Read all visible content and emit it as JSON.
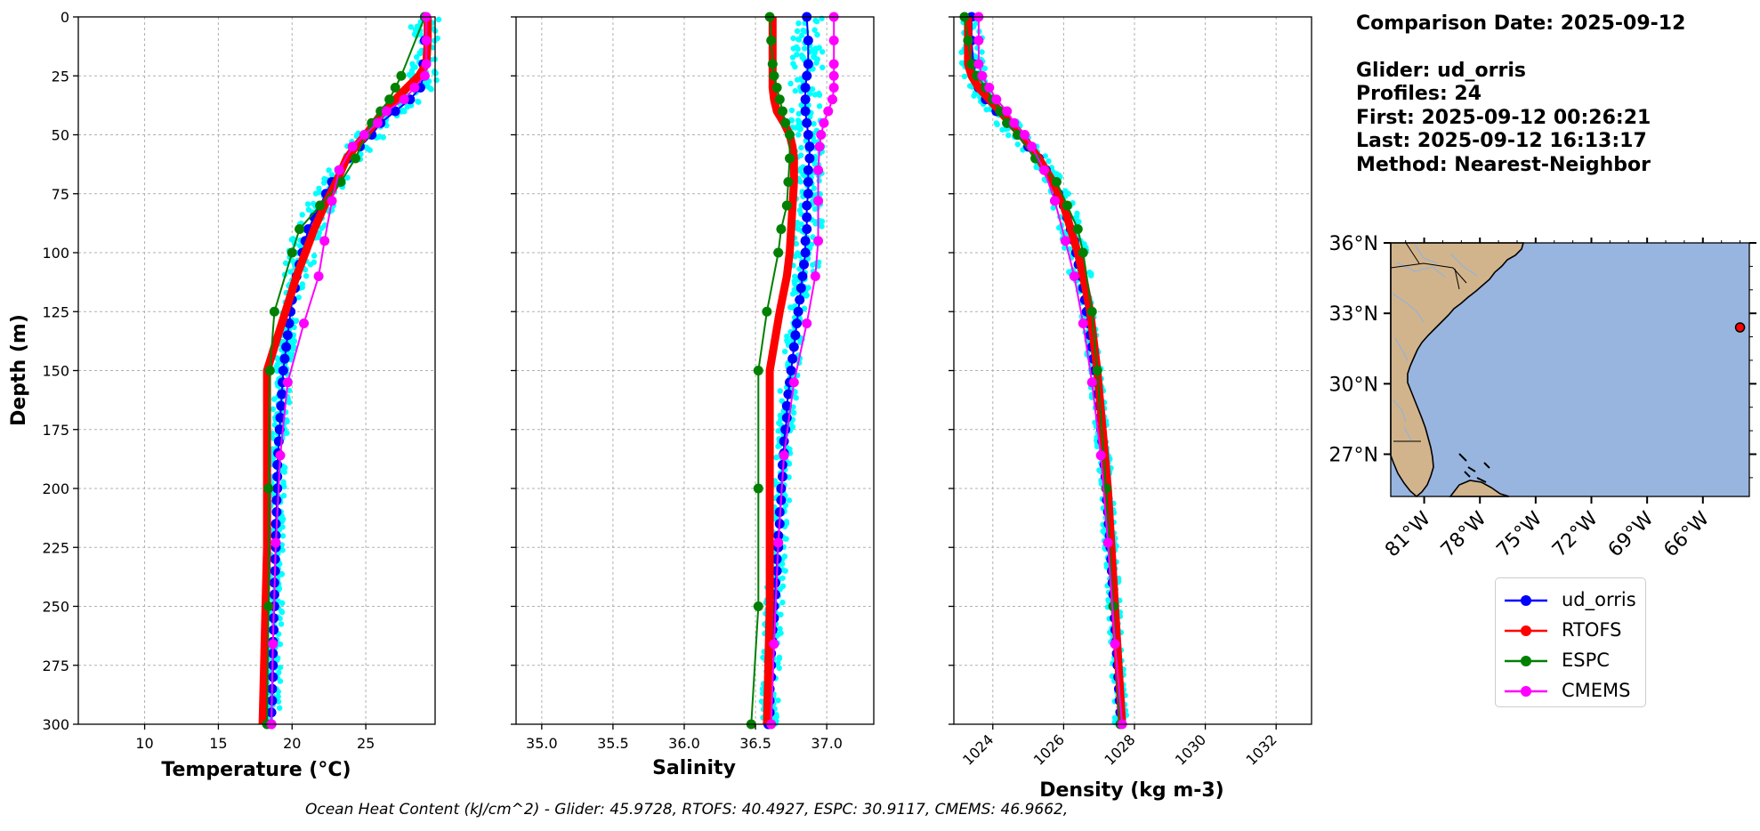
{
  "info": {
    "comparison_date": "Comparison Date: 2025-09-12",
    "glider": "Glider: ud_orris",
    "profiles": "Profiles: 24",
    "first": "First: 2025-09-12 00:26:21",
    "last": "Last: 2025-09-12 16:13:17",
    "method": "Method: Nearest-Neighbor"
  },
  "footer": "Ocean Heat Content (kJ/cm^2) - Glider: 45.9728,  RTOFS: 40.4927,  ESPC: 30.9117,  CMEMS: 46.9662,",
  "colors": {
    "glider": "#0000ff",
    "glider_raw": "#00ffff",
    "rtofs": "#ff0000",
    "espc": "#008000",
    "cmems": "#ff00ff",
    "ocean": "#98b5e0",
    "land": "#d2b48c"
  },
  "legend": [
    {
      "label": "ud_orris",
      "color": "#0000ff"
    },
    {
      "label": "RTOFS",
      "color": "#ff0000"
    },
    {
      "label": "ESPC",
      "color": "#008000"
    },
    {
      "label": "CMEMS",
      "color": "#ff00ff"
    }
  ],
  "chart_data": [
    {
      "type": "line",
      "xlabel": "Temperature (°C)",
      "ylabel": "Depth (m)",
      "xlim": [
        5.5,
        29.7
      ],
      "ylim": [
        300,
        0
      ],
      "x_ticks": [
        10,
        15,
        20,
        25
      ],
      "y_ticks": [
        0,
        25,
        50,
        75,
        100,
        125,
        150,
        175,
        200,
        225,
        250,
        275,
        300
      ],
      "grid": true,
      "series": [
        {
          "name": "ud_orris",
          "depth": [
            0,
            10,
            20,
            25,
            30,
            35,
            40,
            45,
            50,
            55,
            60,
            65,
            70,
            75,
            80,
            85,
            90,
            95,
            100,
            105,
            110,
            115,
            120,
            125,
            130,
            135,
            140,
            145,
            150,
            155,
            160,
            165,
            170,
            175,
            180,
            185,
            190,
            195,
            200,
            205,
            210,
            215,
            220,
            225,
            230,
            235,
            240,
            245,
            250,
            255,
            260,
            265,
            270,
            275,
            280,
            285,
            290,
            295,
            300
          ],
          "values": [
            29.0,
            29.0,
            28.9,
            28.9,
            28.7,
            28.0,
            27.0,
            26.0,
            25.4,
            24.6,
            23.8,
            23.2,
            22.7,
            22.3,
            21.9,
            21.5,
            21.1,
            20.9,
            20.7,
            20.5,
            20.3,
            20.2,
            20.0,
            19.9,
            19.8,
            19.7,
            19.6,
            19.5,
            19.4,
            19.35,
            19.3,
            19.25,
            19.2,
            19.15,
            19.1,
            19.05,
            19.0,
            19.0,
            19.0,
            18.95,
            18.95,
            18.9,
            18.9,
            18.9,
            18.85,
            18.85,
            18.8,
            18.8,
            18.8,
            18.75,
            18.75,
            18.7,
            18.7,
            18.7,
            18.7,
            18.65,
            18.65,
            18.6,
            18.6
          ]
        },
        {
          "name": "RTOFS",
          "depth": [
            0,
            10,
            20,
            25,
            30,
            35,
            40,
            45,
            50,
            55,
            60,
            70,
            80,
            90,
            100,
            110,
            120,
            130,
            140,
            150,
            175,
            200,
            225,
            250,
            275,
            300
          ],
          "values": [
            29.2,
            29.2,
            29.1,
            28.6,
            27.8,
            27.0,
            26.2,
            25.6,
            25.0,
            24.3,
            23.7,
            23.0,
            22.2,
            21.5,
            20.9,
            20.3,
            19.8,
            19.3,
            18.8,
            18.3,
            18.3,
            18.3,
            18.3,
            18.2,
            18.1,
            18.0
          ]
        },
        {
          "name": "ESPC",
          "depth": [
            0,
            25,
            30,
            35,
            40,
            45,
            50,
            60,
            70,
            80,
            90,
            100,
            125,
            150,
            200,
            250,
            300
          ],
          "values": [
            29.0,
            27.4,
            27.0,
            26.6,
            26.0,
            25.4,
            25.0,
            24.3,
            23.3,
            21.9,
            20.5,
            20.0,
            18.8,
            18.5,
            18.4,
            18.4,
            18.3
          ]
        },
        {
          "name": "CMEMS",
          "depth": [
            0,
            10,
            20,
            25,
            30,
            35,
            40,
            45,
            50,
            55,
            65,
            78,
            95,
            110,
            130,
            155,
            186,
            223,
            266,
            300
          ],
          "values": [
            29.1,
            29.1,
            29.1,
            29.0,
            28.3,
            27.6,
            26.4,
            25.8,
            24.9,
            24.1,
            23.2,
            22.7,
            22.2,
            21.8,
            20.8,
            19.7,
            19.2,
            18.9,
            18.7,
            18.6
          ]
        }
      ]
    },
    {
      "type": "line",
      "xlabel": "Salinity",
      "xlim": [
        34.82,
        37.33
      ],
      "ylim": [
        300,
        0
      ],
      "x_ticks": [
        35.0,
        35.5,
        36.0,
        36.5,
        37.0
      ],
      "grid": true,
      "series": [
        {
          "name": "ud_orris",
          "depth": [
            0,
            10,
            20,
            25,
            30,
            35,
            40,
            45,
            50,
            55,
            60,
            65,
            70,
            75,
            80,
            85,
            90,
            95,
            100,
            105,
            110,
            115,
            120,
            125,
            130,
            135,
            140,
            145,
            150,
            155,
            160,
            165,
            170,
            175,
            180,
            185,
            190,
            195,
            200,
            205,
            210,
            215,
            220,
            225,
            230,
            235,
            240,
            245,
            250,
            255,
            260,
            265,
            270,
            275,
            280,
            285,
            290,
            295,
            300
          ],
          "values": [
            36.86,
            36.87,
            36.87,
            36.86,
            36.85,
            36.85,
            36.85,
            36.86,
            36.87,
            36.88,
            36.88,
            36.87,
            36.87,
            36.87,
            36.86,
            36.86,
            36.86,
            36.85,
            36.85,
            36.84,
            36.83,
            36.82,
            36.81,
            36.8,
            36.79,
            36.78,
            36.77,
            36.76,
            36.75,
            36.74,
            36.73,
            36.72,
            36.72,
            36.71,
            36.7,
            36.7,
            36.69,
            36.69,
            36.68,
            36.68,
            36.67,
            36.67,
            36.66,
            36.66,
            36.65,
            36.65,
            36.64,
            36.64,
            36.63,
            36.63,
            36.62,
            36.62,
            36.61,
            36.61,
            36.61,
            36.6,
            36.6,
            36.6,
            36.59
          ]
        },
        {
          "name": "RTOFS",
          "depth": [
            0,
            10,
            20,
            25,
            30,
            35,
            40,
            45,
            50,
            55,
            60,
            70,
            80,
            90,
            100,
            110,
            125,
            150,
            175,
            200,
            225,
            250,
            275,
            300
          ],
          "values": [
            36.62,
            36.62,
            36.62,
            36.62,
            36.62,
            36.63,
            36.65,
            36.7,
            36.74,
            36.76,
            36.77,
            36.77,
            36.76,
            36.75,
            36.74,
            36.72,
            36.67,
            36.6,
            36.6,
            36.6,
            36.6,
            36.6,
            36.59,
            36.58
          ]
        },
        {
          "name": "ESPC",
          "depth": [
            0,
            10,
            20,
            25,
            30,
            35,
            40,
            45,
            50,
            60,
            70,
            80,
            90,
            100,
            125,
            150,
            200,
            250,
            300
          ],
          "values": [
            36.6,
            36.61,
            36.62,
            36.63,
            36.65,
            36.67,
            36.69,
            36.71,
            36.74,
            36.74,
            36.73,
            36.72,
            36.68,
            36.66,
            36.58,
            36.52,
            36.52,
            36.52,
            36.47
          ]
        },
        {
          "name": "CMEMS",
          "depth": [
            0,
            10,
            20,
            25,
            30,
            35,
            40,
            45,
            50,
            55,
            65,
            78,
            95,
            110,
            130,
            155,
            186,
            223,
            266,
            300
          ],
          "values": [
            37.05,
            37.05,
            37.05,
            37.05,
            37.05,
            37.04,
            37.01,
            36.98,
            36.96,
            36.95,
            36.94,
            36.94,
            36.94,
            36.92,
            36.86,
            36.77,
            36.7,
            36.66,
            36.63,
            36.61
          ]
        }
      ]
    },
    {
      "type": "line",
      "xlabel": "Density (kg m-3)",
      "xlim": [
        1022.9,
        1033.0
      ],
      "ylim": [
        300,
        0
      ],
      "x_ticks": [
        1024,
        1026,
        1028,
        1030,
        1032
      ],
      "grid": true,
      "series": [
        {
          "name": "ud_orris",
          "depth": [
            0,
            10,
            20,
            25,
            30,
            35,
            40,
            45,
            50,
            55,
            60,
            65,
            70,
            75,
            80,
            85,
            90,
            95,
            100,
            105,
            110,
            115,
            120,
            125,
            130,
            135,
            140,
            145,
            150,
            155,
            160,
            165,
            170,
            175,
            180,
            185,
            190,
            195,
            200,
            205,
            210,
            215,
            220,
            225,
            230,
            235,
            240,
            245,
            250,
            255,
            260,
            265,
            270,
            275,
            280,
            285,
            290,
            295,
            300
          ],
          "values": [
            1023.4,
            1023.4,
            1023.45,
            1023.5,
            1023.6,
            1023.8,
            1024.1,
            1024.4,
            1024.7,
            1025.0,
            1025.3,
            1025.5,
            1025.7,
            1025.85,
            1026.0,
            1026.1,
            1026.2,
            1026.3,
            1026.35,
            1026.42,
            1026.5,
            1026.55,
            1026.6,
            1026.65,
            1026.7,
            1026.75,
            1026.8,
            1026.84,
            1026.88,
            1026.92,
            1026.96,
            1027.0,
            1027.03,
            1027.06,
            1027.09,
            1027.12,
            1027.15,
            1027.18,
            1027.2,
            1027.22,
            1027.25,
            1027.27,
            1027.3,
            1027.32,
            1027.34,
            1027.36,
            1027.38,
            1027.4,
            1027.42,
            1027.44,
            1027.46,
            1027.48,
            1027.5,
            1027.52,
            1027.54,
            1027.56,
            1027.58,
            1027.6,
            1027.62
          ]
        },
        {
          "name": "RTOFS",
          "depth": [
            0,
            10,
            20,
            25,
            30,
            35,
            40,
            50,
            60,
            70,
            80,
            90,
            100,
            110,
            125,
            150,
            175,
            200,
            225,
            250,
            275,
            300
          ],
          "values": [
            1023.3,
            1023.3,
            1023.3,
            1023.4,
            1023.6,
            1023.9,
            1024.2,
            1024.8,
            1025.3,
            1025.7,
            1026.0,
            1026.2,
            1026.4,
            1026.55,
            1026.75,
            1026.95,
            1027.1,
            1027.25,
            1027.35,
            1027.45,
            1027.55,
            1027.65
          ]
        },
        {
          "name": "ESPC",
          "depth": [
            0,
            10,
            20,
            25,
            30,
            35,
            40,
            45,
            50,
            60,
            70,
            80,
            90,
            100,
            125,
            150,
            200,
            250,
            300
          ],
          "values": [
            1023.2,
            1023.3,
            1023.4,
            1023.55,
            1023.8,
            1024.0,
            1024.2,
            1024.4,
            1024.7,
            1025.2,
            1025.8,
            1026.1,
            1026.4,
            1026.55,
            1026.8,
            1026.95,
            1027.2,
            1027.4,
            1027.6
          ]
        },
        {
          "name": "CMEMS",
          "depth": [
            0,
            10,
            20,
            25,
            30,
            35,
            40,
            45,
            50,
            55,
            65,
            78,
            95,
            110,
            130,
            155,
            186,
            223,
            266,
            300
          ],
          "values": [
            1023.6,
            1023.6,
            1023.6,
            1023.7,
            1023.9,
            1024.1,
            1024.4,
            1024.6,
            1024.9,
            1025.1,
            1025.45,
            1025.75,
            1026.05,
            1026.3,
            1026.55,
            1026.8,
            1027.05,
            1027.25,
            1027.45,
            1027.65
          ]
        }
      ]
    },
    {
      "type": "map",
      "lat_range": [
        25.2,
        36.0
      ],
      "lon_range": [
        -82.8,
        -63.5
      ],
      "lat_ticks": [
        "27°N",
        "30°N",
        "33°N",
        "36°N"
      ],
      "lon_ticks": [
        "81°W",
        "78°W",
        "75°W",
        "72°W",
        "69°W",
        "66°W"
      ],
      "lat_tick_values": [
        27,
        30,
        33,
        36
      ],
      "lon_tick_values": [
        -81,
        -78,
        -75,
        -72,
        -69,
        -66
      ],
      "glider_position": {
        "lon": -64.0,
        "lat": 32.4
      }
    }
  ]
}
